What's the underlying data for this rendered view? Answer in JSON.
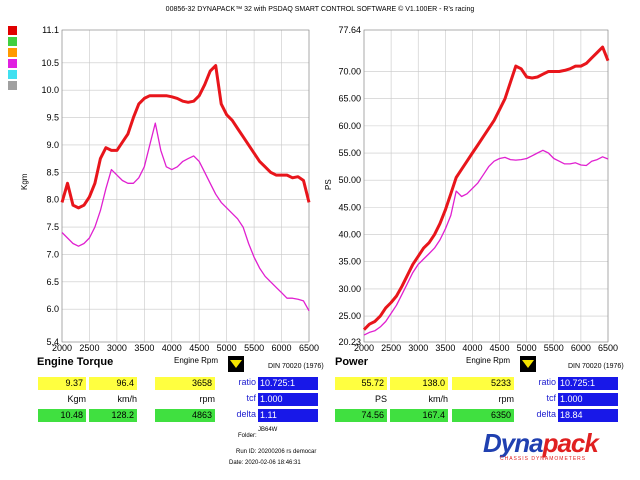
{
  "header": {
    "title": "00856-32 DYNAPACK™ 32 with PSDAQ SMART CONTROL SOFTWARE © V1.100ER - R's racing"
  },
  "swatch_colors": [
    "#e00000",
    "#40d040",
    "#ff9900",
    "#e020e0",
    "#40e0f0",
    "#a0a0a0"
  ],
  "colors": {
    "run1": "#e8151b",
    "run2": "#e020d0",
    "grid": "#c8c8c8"
  },
  "torque_chart": {
    "title": "Engine Torque",
    "xlabel": "Engine Rpm",
    "ylabel": "Kgm",
    "din": "DIN 70020 (1976)",
    "x_ticks": [
      "2000",
      "2500",
      "3000",
      "3500",
      "4000",
      "4500",
      "5000",
      "5500",
      "6000",
      "6500"
    ],
    "y_ticks": [
      "5.4",
      "6.0",
      "6.5",
      "7.0",
      "7.5",
      "8.0",
      "8.5",
      "9.0",
      "9.5",
      "10.0",
      "10.5",
      "11.1"
    ]
  },
  "power_chart": {
    "title": "Power",
    "xlabel": "Engine Rpm",
    "ylabel": "PS",
    "din": "DIN 70020 (1976)",
    "x_ticks": [
      "2000",
      "2500",
      "3000",
      "3500",
      "4000",
      "4500",
      "5000",
      "5500",
      "6000",
      "6500"
    ],
    "y_ticks": [
      "20.23",
      "25.00",
      "30.00",
      "35.00",
      "40.00",
      "45.00",
      "50.00",
      "55.00",
      "60.00",
      "65.00",
      "70.00",
      "77.64"
    ]
  },
  "torque_readout": {
    "top": [
      "9.37",
      "96.4",
      "3658"
    ],
    "units": [
      "Kgm",
      "km/h",
      "rpm"
    ],
    "bottom": [
      "10.48",
      "128.2",
      "4863"
    ],
    "ratio_label": "ratio",
    "ratio": "10.725:1",
    "tcf_label": "tcf",
    "tcf": "1.000",
    "delta_label": "delta",
    "delta": "1.11"
  },
  "power_readout": {
    "top": [
      "55.72",
      "138.0",
      "5233"
    ],
    "units": [
      "PS",
      "km/h",
      "rpm"
    ],
    "bottom": [
      "74.56",
      "167.4",
      "6350"
    ],
    "ratio_label": "ratio",
    "ratio": "10.725:1",
    "tcf_label": "tcf",
    "tcf": "1.000",
    "delta_label": "delta",
    "delta": "18.84"
  },
  "run_info": {
    "folder_label": "Folder:",
    "folder": "JB64W",
    "run_id": "Run ID: 20200206 rs democar",
    "date": "Date: 2020-02-06 18:46:31"
  },
  "logo": {
    "text_a": "Dyna",
    "text_b": "pack",
    "tagline": "CHASSIS DYNAMOMETERS"
  },
  "chart_data": [
    {
      "type": "line",
      "title": "Engine Torque",
      "xlabel": "Engine Rpm",
      "ylabel": "Kgm",
      "xlim": [
        2000,
        6500
      ],
      "ylim": [
        5.4,
        11.1
      ],
      "x": [
        2000,
        2100,
        2200,
        2300,
        2400,
        2500,
        2600,
        2700,
        2800,
        2900,
        3000,
        3100,
        3200,
        3300,
        3400,
        3500,
        3600,
        3700,
        3800,
        3900,
        4000,
        4100,
        4200,
        4300,
        4400,
        4500,
        4600,
        4700,
        4800,
        4900,
        5000,
        5100,
        5200,
        5300,
        5400,
        5500,
        5600,
        5700,
        5800,
        5900,
        6000,
        6100,
        6200,
        6300,
        6400,
        6500
      ],
      "series": [
        {
          "values": [
            7.95,
            8.3,
            7.9,
            7.85,
            7.9,
            8.05,
            8.3,
            8.75,
            8.95,
            8.9,
            8.9,
            9.05,
            9.2,
            9.5,
            9.75,
            9.85,
            9.9,
            9.9,
            9.9,
            9.9,
            9.88,
            9.85,
            9.8,
            9.78,
            9.8,
            9.9,
            10.1,
            10.35,
            10.45,
            9.75,
            9.55,
            9.45,
            9.3,
            9.15,
            9.0,
            8.85,
            8.7,
            8.6,
            8.5,
            8.45,
            8.45,
            8.45,
            8.4,
            8.42,
            8.35,
            7.95
          ]
        },
        {
          "values": [
            7.4,
            7.3,
            7.2,
            7.15,
            7.2,
            7.3,
            7.5,
            7.8,
            8.2,
            8.55,
            8.45,
            8.35,
            8.3,
            8.3,
            8.4,
            8.6,
            9.0,
            9.4,
            8.9,
            8.6,
            8.55,
            8.6,
            8.7,
            8.75,
            8.8,
            8.7,
            8.5,
            8.3,
            8.1,
            7.95,
            7.85,
            7.75,
            7.65,
            7.5,
            7.2,
            6.95,
            6.75,
            6.6,
            6.5,
            6.4,
            6.3,
            6.2,
            6.2,
            6.18,
            6.15,
            5.97
          ]
        }
      ]
    },
    {
      "type": "line",
      "title": "Power",
      "xlabel": "Engine Rpm",
      "ylabel": "PS",
      "xlim": [
        2000,
        6500
      ],
      "ylim": [
        20.23,
        77.64
      ],
      "x": [
        2000,
        2100,
        2200,
        2300,
        2400,
        2500,
        2600,
        2700,
        2800,
        2900,
        3000,
        3100,
        3200,
        3300,
        3400,
        3500,
        3600,
        3700,
        3800,
        3900,
        4000,
        4100,
        4200,
        4300,
        4400,
        4500,
        4600,
        4700,
        4800,
        4900,
        5000,
        5100,
        5200,
        5300,
        5400,
        5500,
        5600,
        5700,
        5800,
        5900,
        6000,
        6100,
        6200,
        6300,
        6400,
        6500
      ],
      "series": [
        {
          "values": [
            22.5,
            23.5,
            24.0,
            25.0,
            26.5,
            27.5,
            28.7,
            30.5,
            32.5,
            34.5,
            36.0,
            37.5,
            38.5,
            40.0,
            42.0,
            44.5,
            47.5,
            50.5,
            52.0,
            53.5,
            55.0,
            56.5,
            58.0,
            59.5,
            61.0,
            63.0,
            65.0,
            68.0,
            71.0,
            70.5,
            69.0,
            68.8,
            69.0,
            69.5,
            70.0,
            70.0,
            70.0,
            70.2,
            70.5,
            71.0,
            71.0,
            71.5,
            72.5,
            73.5,
            74.5,
            72.0
          ]
        },
        {
          "values": [
            21.5,
            22.0,
            22.3,
            23.0,
            24.0,
            25.5,
            27.0,
            29.0,
            31.0,
            33.0,
            34.5,
            35.5,
            36.5,
            37.5,
            39.0,
            41.0,
            43.5,
            48.0,
            47.0,
            47.5,
            48.5,
            49.5,
            51.0,
            52.5,
            53.5,
            54.0,
            54.2,
            53.8,
            53.7,
            53.8,
            54.0,
            54.5,
            55.0,
            55.5,
            55.0,
            54.0,
            53.5,
            53.0,
            53.0,
            53.2,
            52.8,
            52.7,
            53.5,
            53.8,
            54.3,
            53.9
          ]
        }
      ]
    }
  ]
}
